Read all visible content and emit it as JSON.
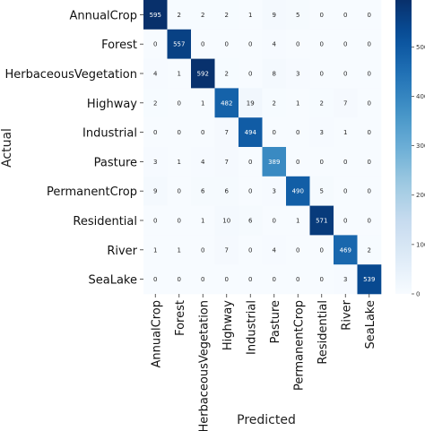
{
  "chart_data": {
    "type": "heatmap",
    "title": "",
    "xlabel": "Predicted",
    "ylabel": "Actual",
    "x_categories": [
      "AnnualCrop",
      "Forest",
      "HerbaceousVegetation",
      "Highway",
      "Industrial",
      "Pasture",
      "PermanentCrop",
      "Residential",
      "River",
      "SeaLake"
    ],
    "y_categories": [
      "AnnualCrop",
      "Forest",
      "HerbaceousVegetation",
      "Highway",
      "Industrial",
      "Pasture",
      "PermanentCrop",
      "Residential",
      "River",
      "SeaLake"
    ],
    "values": [
      [
        595,
        2,
        2,
        2,
        1,
        9,
        5,
        0,
        0,
        0
      ],
      [
        0,
        557,
        0,
        0,
        0,
        4,
        0,
        0,
        0,
        0
      ],
      [
        4,
        1,
        592,
        2,
        0,
        8,
        3,
        0,
        0,
        0
      ],
      [
        2,
        0,
        1,
        482,
        19,
        2,
        1,
        2,
        7,
        0
      ],
      [
        0,
        0,
        0,
        7,
        494,
        0,
        0,
        3,
        1,
        0
      ],
      [
        3,
        1,
        4,
        7,
        0,
        389,
        0,
        0,
        0,
        0
      ],
      [
        9,
        0,
        6,
        6,
        0,
        3,
        490,
        5,
        0,
        0
      ],
      [
        0,
        0,
        1,
        10,
        6,
        0,
        1,
        571,
        0,
        0
      ],
      [
        1,
        1,
        0,
        7,
        0,
        4,
        0,
        0,
        469,
        2
      ],
      [
        0,
        0,
        0,
        0,
        0,
        0,
        0,
        0,
        3,
        539
      ]
    ],
    "colorbar": {
      "ticks": [
        0,
        100,
        200,
        300,
        400,
        500
      ],
      "range": [
        0,
        595
      ],
      "colormap": "Blues"
    },
    "colors": {
      "low": "#f7fbff",
      "high": "#08306b"
    }
  }
}
